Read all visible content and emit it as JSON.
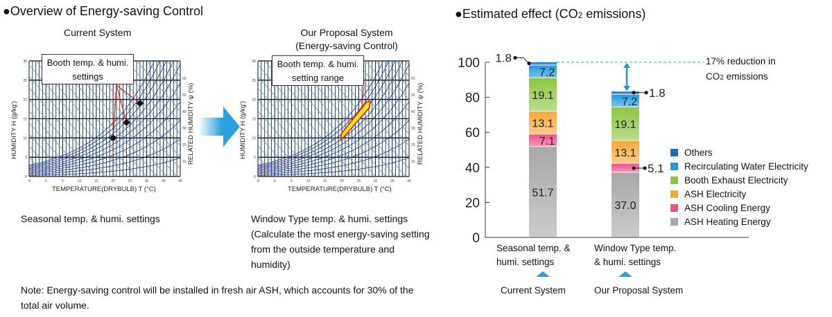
{
  "left_section": {
    "title": "●Overview of Energy-saving Control",
    "current": {
      "heading": "Current System",
      "callout": "Booth temp. & humi. settings",
      "caption": "Seasonal temp. & humi. settings",
      "setpoints": [
        {
          "temp_c": 20,
          "humidity_g_kg": 10
        },
        {
          "temp_c": 24,
          "humidity_g_kg": 14
        },
        {
          "temp_c": 28,
          "humidity_g_kg": 19
        }
      ]
    },
    "proposal": {
      "heading_line1": "Our Proposal System",
      "heading_line2": "(Energy-saving Control)",
      "callout": "Booth temp. & humi. setting range",
      "caption": "Window Type temp. & humi. settings (Calculate the most energy-saving setting from the outside temperature and humidity)",
      "range": {
        "temp_c": [
          20,
          28
        ],
        "humidity_g_kg": [
          10,
          19
        ]
      }
    },
    "psychro_axes": {
      "x_label": "TEMPERATURE(DRYBULB) T (°C)",
      "y_label": "HUMIDITY H (g/kg')",
      "y2_label": "RELATED HUMIDITY ψ (%)",
      "x_ticks": [
        "-5",
        "0",
        "5",
        "10",
        "15",
        "20",
        "25",
        "30",
        "35",
        "40"
      ],
      "y_ticks": [
        "0",
        "5",
        "10",
        "15",
        "20",
        "25",
        "30"
      ],
      "rh_ticks": [
        "10",
        "20",
        "30",
        "40",
        "50",
        "60"
      ]
    },
    "note": "Note: Energy-saving control will be installed in fresh air ASH, which accounts for 30% of the total air volume."
  },
  "right_section": {
    "title_pre": "●Estimated effect (CO",
    "title_sub": "2",
    "title_post": " emissions)",
    "reduction_line1": "17% reduction in",
    "reduction_line2_pre": "CO",
    "reduction_line2_sub": "2",
    "reduction_line2_post": " emissions",
    "system_labels": [
      "Current System",
      "Our Proposal System"
    ]
  },
  "chart_data": {
    "type": "bar",
    "stacked": true,
    "title": "Estimated effect (CO2 emissions)",
    "categories": [
      "Seasonal temp. & humi. settings",
      "Window Type temp. & humi. settings"
    ],
    "category_lines": [
      [
        "Seasonal temp. &",
        "humi. settings"
      ],
      [
        "Window Type temp.",
        "& humi. settings"
      ]
    ],
    "series": [
      {
        "name": "ASH Heating Energy",
        "color": "#a8a8a8",
        "values": [
          51.7,
          37.0
        ],
        "labels": [
          "51.7",
          "37.0"
        ]
      },
      {
        "name": "ASH Cooling Energy",
        "color": "#f0508a",
        "values": [
          7.1,
          5.1
        ],
        "labels": [
          "7.1",
          "5.1"
        ]
      },
      {
        "name": "ASH Electricity",
        "color": "#f9a93a",
        "values": [
          13.1,
          13.1
        ],
        "labels": [
          "13.1",
          "13.1"
        ]
      },
      {
        "name": "Booth Exhaust Electricity",
        "color": "#8cc63f",
        "values": [
          19.1,
          19.1
        ],
        "labels": [
          "19.1",
          "19.1"
        ]
      },
      {
        "name": "Recirculating Water Electricity",
        "color": "#1e9be0",
        "values": [
          7.2,
          7.2
        ],
        "labels": [
          "7.2",
          "7.2"
        ]
      },
      {
        "name": "Others",
        "color": "#1a6fb5",
        "values": [
          1.8,
          1.8
        ],
        "labels": [
          "1.8",
          "1.8"
        ]
      }
    ],
    "legend_order": [
      "Others",
      "Recirculating Water Electricity",
      "Booth Exhaust Electricity",
      "ASH Electricity",
      "ASH Cooling Energy",
      "ASH Heating Energy"
    ],
    "legend_position": "right",
    "ylim": [
      0,
      100
    ],
    "yticks": [
      0,
      20,
      40,
      60,
      80,
      100
    ],
    "xlabel": "",
    "ylabel": "",
    "grid": false,
    "annotations": [
      {
        "text": "17% reduction in CO2 emissions",
        "from": 100,
        "to": 83
      }
    ]
  }
}
